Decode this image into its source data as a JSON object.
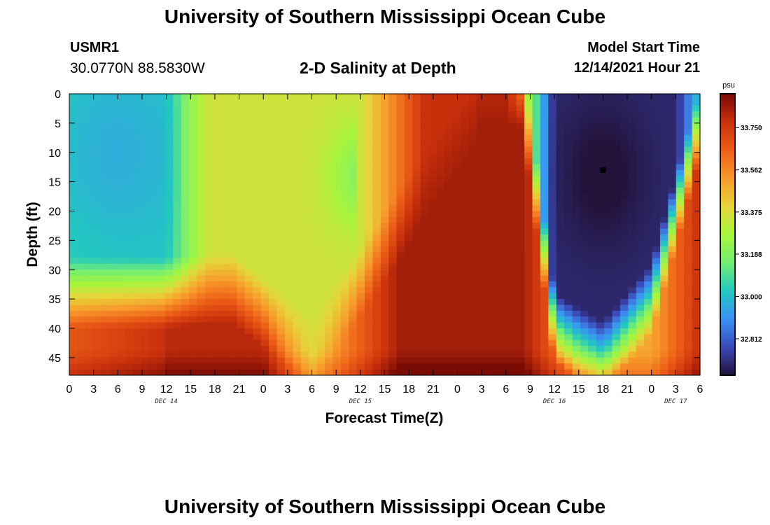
{
  "header": {
    "title": "University of Southern Mississippi Ocean Cube",
    "station_id": "USMR1",
    "station_coords": "30.0770N  88.5830W",
    "plot_title": "2-D Salinity at Depth",
    "model_start_label": "Model Start Time",
    "model_start_value": "12/14/2021 Hour 21"
  },
  "footer": {
    "title": "University of Southern Mississippi Ocean Cube"
  },
  "colors": {
    "colormap": [
      "#23123a",
      "#3b4ab8",
      "#3b92f5",
      "#22c8c0",
      "#73ee73",
      "#a8f53d",
      "#e6d53a",
      "#f89a2b",
      "#ec5e17",
      "#c8300c",
      "#7a0b05"
    ]
  },
  "chart_data": {
    "type": "heatmap",
    "title": "2-D Salinity at Depth",
    "xlabel": "Forecast Time(Z)",
    "ylabel": "Depth (ft)",
    "x_tick_labels": [
      "0",
      "3",
      "6",
      "9",
      "12",
      "15",
      "18",
      "21",
      "0",
      "3",
      "6",
      "9",
      "12",
      "15",
      "18",
      "21",
      "0",
      "3",
      "6",
      "9",
      "12",
      "15",
      "18",
      "21",
      "0",
      "3",
      "6"
    ],
    "x_range_hours": [
      0,
      78
    ],
    "date_labels": [
      {
        "label": "DEC 14",
        "hour": 12
      },
      {
        "label": "DEC 15",
        "hour": 36
      },
      {
        "label": "DEC 16",
        "hour": 60
      },
      {
        "label": "DEC 17",
        "hour": 75
      }
    ],
    "y_ticks": [
      0,
      5,
      10,
      15,
      20,
      25,
      30,
      35,
      40,
      45
    ],
    "y_range_ft": [
      0,
      48
    ],
    "colorbar": {
      "unit": "psu",
      "min": 32.65,
      "max": 33.9,
      "ticks": [
        "33.750",
        "33.562",
        "33.375",
        "33.188",
        "33.000",
        "32.812"
      ]
    },
    "marker": {
      "hour": 66,
      "depth_ft": 13
    },
    "grid": false
  }
}
